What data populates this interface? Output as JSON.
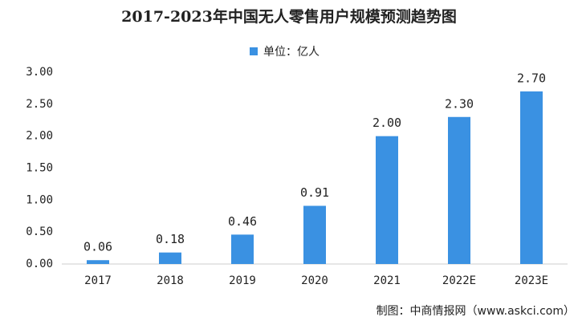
{
  "chart_data": {
    "type": "bar",
    "title": "2017-2023年中国无人零售用户规模预测趋势图",
    "categories": [
      "2017",
      "2018",
      "2019",
      "2020",
      "2021",
      "2022E",
      "2023E"
    ],
    "series": [
      {
        "name": "单位：亿人",
        "color": "#3a91e2",
        "values": [
          0.06,
          0.18,
          0.46,
          0.91,
          2.0,
          2.3,
          2.7
        ],
        "value_labels": [
          "0.06",
          "0.18",
          "0.46",
          "0.91",
          "2.00",
          "2.30",
          "2.70"
        ]
      }
    ],
    "ylim": [
      0,
      3
    ],
    "yticks": [
      {
        "value": 0,
        "label": "0.00"
      },
      {
        "value": 0.5,
        "label": "0.50"
      },
      {
        "value": 1,
        "label": "1.00"
      },
      {
        "value": 1.5,
        "label": "1.50"
      },
      {
        "value": 2,
        "label": "2.00"
      },
      {
        "value": 2.5,
        "label": "2.50"
      },
      {
        "value": 3,
        "label": "3.00"
      }
    ],
    "grid": false,
    "source": "制图：中商情报网（www.askci.com）"
  }
}
